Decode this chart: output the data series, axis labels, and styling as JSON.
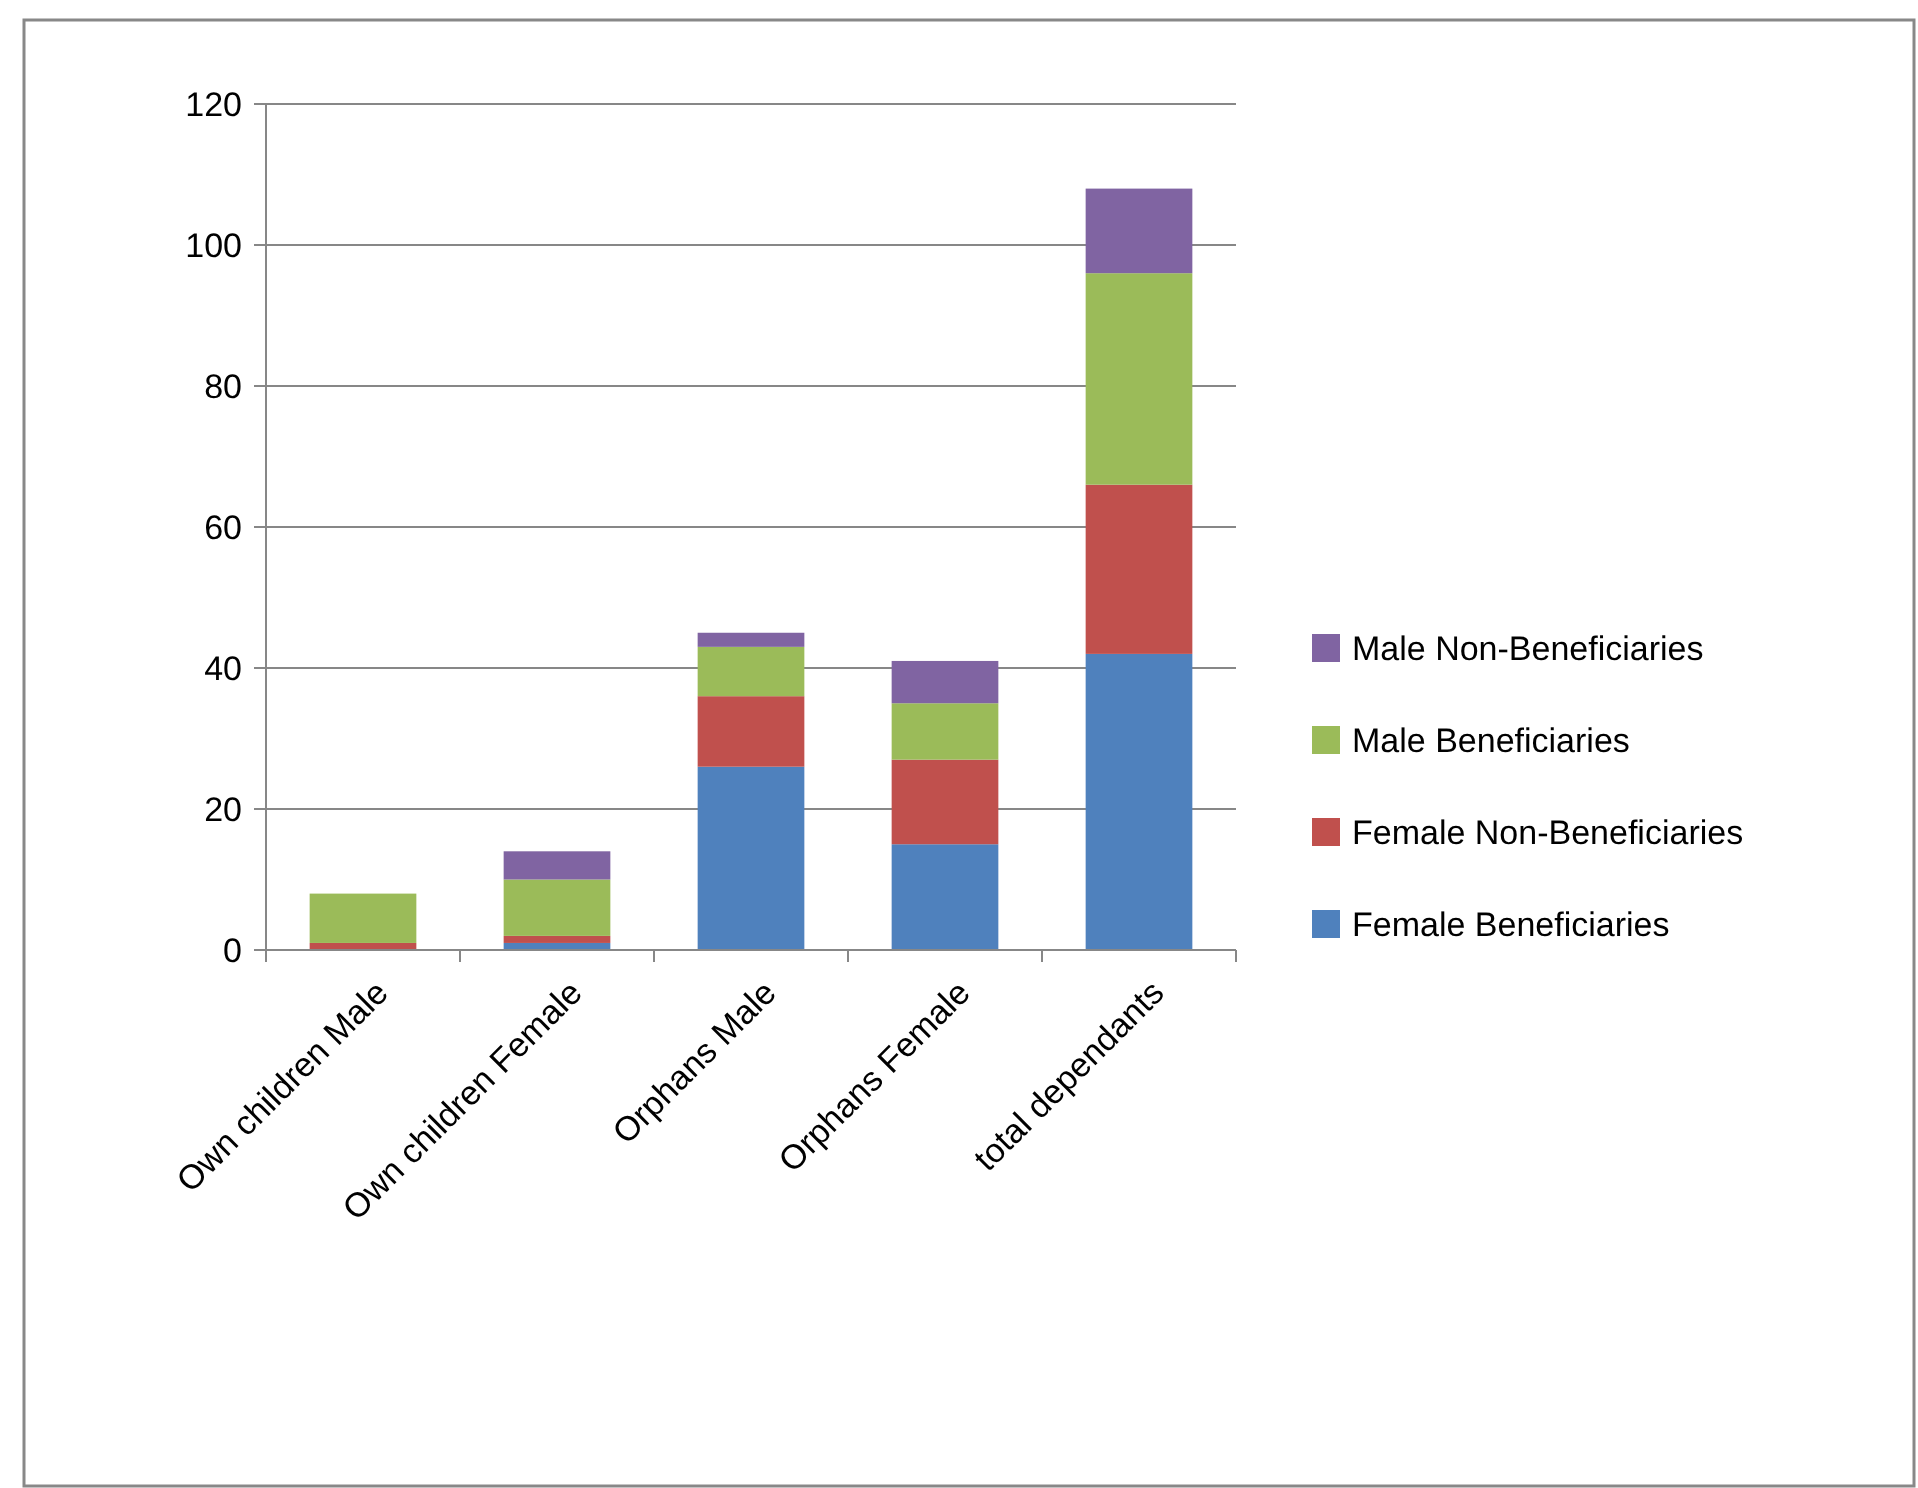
{
  "chart_data": {
    "type": "bar",
    "stacked": true,
    "categories": [
      "Own children Male",
      "Own children Female",
      "Orphans Male",
      "Orphans Female",
      "total dependants"
    ],
    "series": [
      {
        "name": "Female Beneficiaries",
        "color": "#4f81bd",
        "values": [
          0,
          1,
          26,
          15,
          42
        ]
      },
      {
        "name": "Female Non-Beneficiaries",
        "color": "#c0504d",
        "values": [
          1,
          1,
          10,
          12,
          24
        ]
      },
      {
        "name": "Male Beneficiaries",
        "color": "#9bbb59",
        "values": [
          7,
          8,
          7,
          8,
          30
        ]
      },
      {
        "name": "Male Non-Beneficiaries",
        "color": "#8064a2",
        "values": [
          0,
          4,
          2,
          6,
          12
        ]
      }
    ],
    "ylim": [
      0,
      120
    ],
    "yticks": [
      0,
      20,
      40,
      60,
      80,
      100,
      120
    ],
    "grid": "y",
    "legend": "right"
  }
}
